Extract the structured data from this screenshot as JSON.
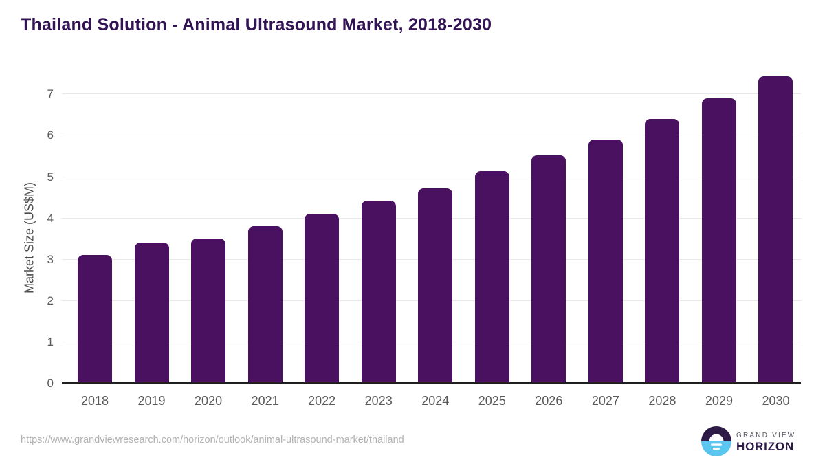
{
  "title": "Thailand Solution - Animal Ultrasound Market, 2018-2030",
  "chart_data": {
    "type": "bar",
    "title": "Thailand Solution - Animal Ultrasound Market, 2018-2030",
    "categories": [
      "2018",
      "2019",
      "2020",
      "2021",
      "2022",
      "2023",
      "2024",
      "2025",
      "2026",
      "2027",
      "2028",
      "2029",
      "2030"
    ],
    "values": [
      3.07,
      3.38,
      3.48,
      3.78,
      4.08,
      4.4,
      4.7,
      5.1,
      5.49,
      5.88,
      6.37,
      6.87,
      7.4
    ],
    "series_name": "Market Size",
    "xlabel": "",
    "ylabel": "Market Size (US$M)",
    "ylim": [
      0,
      7.5
    ],
    "y_ticks": [
      0,
      1,
      2,
      3,
      4,
      5,
      6,
      7
    ],
    "grid": "horizontal-only",
    "legend_position": "none",
    "bar_color": "#4a1161"
  },
  "colors": {
    "title_text": "#321353",
    "bar": "#4a1161",
    "gridline": "#e8e8e8",
    "axis_line": "#1f1f1f",
    "tick_text": "#595959",
    "url_text": "#b2b2b2",
    "logo_dark": "#2e1a47",
    "logo_blue": "#5bc7f0",
    "logo_gray_text": "#55555f"
  },
  "footer": {
    "source_url": "https://www.grandviewresearch.com/horizon/outlook/animal-ultrasound-market/thailand",
    "logo": {
      "line1": "GRAND VIEW",
      "line2": "HORIZON"
    }
  }
}
